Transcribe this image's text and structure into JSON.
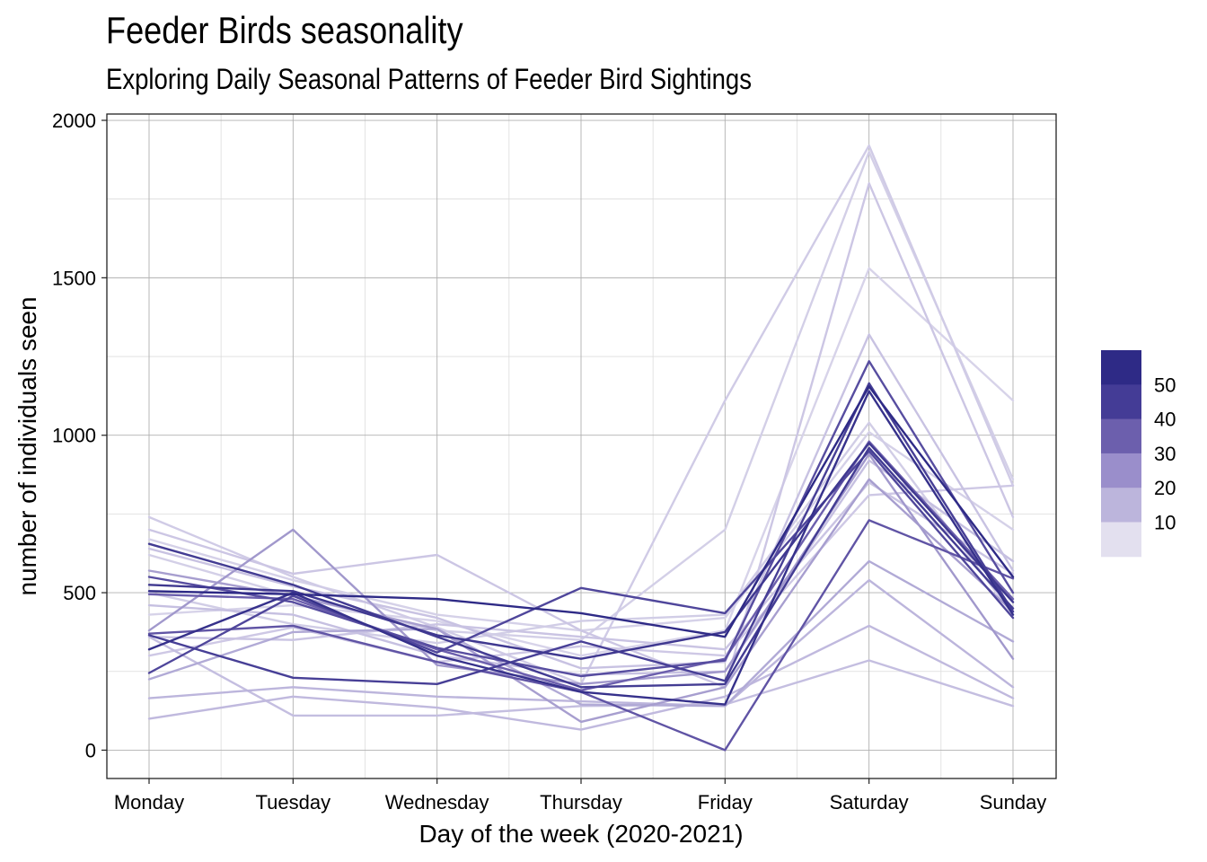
{
  "chart_data": {
    "type": "line",
    "title": "Feeder Birds seasonality",
    "subtitle": "Exploring Daily Seasonal Patterns of Feeder Bird Sightings",
    "xlabel": "Day of the week (2020-2021)",
    "ylabel": "number of individuals seen",
    "categories": [
      "Monday",
      "Tuesday",
      "Wednesday",
      "Thursday",
      "Friday",
      "Saturday",
      "Sunday"
    ],
    "ylim": [
      -90,
      2020
    ],
    "yticks": [
      0,
      500,
      1000,
      1500,
      2000
    ],
    "grid": true,
    "legend": {
      "position": "right",
      "type": "colorbar",
      "labels": [
        "50",
        "40",
        "30",
        "20",
        "10"
      ],
      "colors": [
        "#2e2a86",
        "#443c96",
        "#6c5fad",
        "#9a8ecb",
        "#bcb5dc",
        "#e3e0ef"
      ]
    },
    "series": [
      {
        "level": 50,
        "values": [
          505,
          495,
          480,
          435,
          360,
          1155,
          550
        ]
      },
      {
        "level": 48,
        "values": [
          320,
          500,
          300,
          185,
          145,
          1140,
          430
        ]
      },
      {
        "level": 45,
        "values": [
          655,
          525,
          360,
          200,
          210,
          960,
          450
        ]
      },
      {
        "level": 46,
        "values": [
          525,
          505,
          365,
          290,
          375,
          975,
          470
        ]
      },
      {
        "level": 42,
        "values": [
          245,
          490,
          310,
          515,
          435,
          950,
          420
        ]
      },
      {
        "level": 44,
        "values": [
          365,
          230,
          210,
          345,
          220,
          1165,
          440
        ]
      },
      {
        "level": 40,
        "values": [
          550,
          470,
          325,
          235,
          285,
          1235,
          500
        ]
      },
      {
        "level": 38,
        "values": [
          370,
          395,
          280,
          185,
          0,
          730,
          545
        ]
      },
      {
        "level": 35,
        "values": [
          495,
          480,
          320,
          190,
          290,
          980,
          480
        ]
      },
      {
        "level": 25,
        "values": [
          380,
          700,
          270,
          210,
          250,
          940,
          290
        ]
      },
      {
        "level": 22,
        "values": [
          225,
          375,
          385,
          145,
          140,
          600,
          345
        ]
      },
      {
        "level": 20,
        "values": [
          165,
          200,
          170,
          155,
          140,
          540,
          200
        ]
      },
      {
        "level": 18,
        "values": [
          100,
          170,
          135,
          65,
          170,
          395,
          165
        ]
      },
      {
        "level": 16,
        "values": [
          360,
          110,
          110,
          140,
          145,
          285,
          140
        ]
      },
      {
        "level": 24,
        "values": [
          570,
          490,
          385,
          90,
          200,
          860,
          440
        ]
      },
      {
        "level": 10,
        "values": [
          740,
          550,
          390,
          210,
          1110,
          1920,
          840
        ]
      },
      {
        "level": 8,
        "values": [
          620,
          490,
          380,
          350,
          700,
          1900,
          860
        ]
      },
      {
        "level": 12,
        "values": [
          700,
          560,
          620,
          380,
          200,
          1800,
          740
        ]
      },
      {
        "level": 6,
        "values": [
          430,
          460,
          410,
          300,
          380,
          1530,
          1110
        ]
      },
      {
        "level": 14,
        "values": [
          640,
          520,
          420,
          260,
          280,
          1320,
          570
        ]
      },
      {
        "level": 9,
        "values": [
          500,
          400,
          340,
          410,
          430,
          1040,
          430
        ]
      },
      {
        "level": 11,
        "values": [
          300,
          390,
          280,
          330,
          300,
          810,
          840
        ]
      },
      {
        "level": 7,
        "values": [
          670,
          540,
          430,
          380,
          420,
          1010,
          700
        ]
      },
      {
        "level": 13,
        "values": [
          360,
          350,
          400,
          360,
          320,
          850,
          560
        ]
      },
      {
        "level": 15,
        "values": [
          460,
          430,
          300,
          240,
          250,
          920,
          600
        ]
      }
    ]
  }
}
